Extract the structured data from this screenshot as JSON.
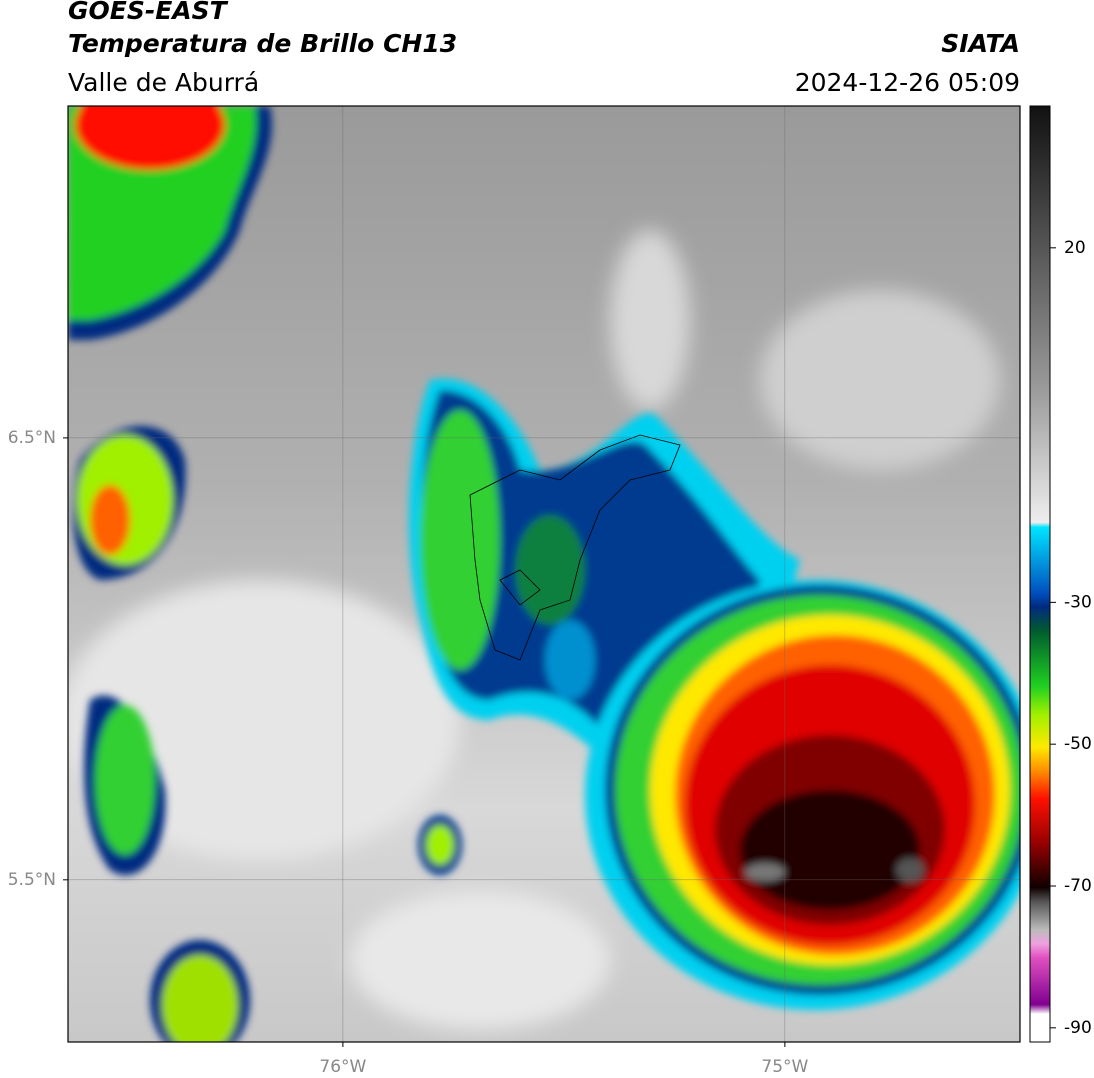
{
  "header": {
    "title": "GOES-EAST",
    "subtitle": "Temperatura de Brillo CH13",
    "region": "Valle de Aburrá",
    "source": "SIATA",
    "datetime": "2024-12-26 05:09"
  },
  "map": {
    "xlim": [
      -76.622,
      -74.468
    ],
    "ylim": [
      5.133,
      7.251
    ],
    "xticks": [
      {
        "value": -76,
        "label": "76°W"
      },
      {
        "value": -75,
        "label": "75°W"
      }
    ],
    "yticks": [
      {
        "value": 6.5,
        "label": "6.5°N"
      },
      {
        "value": 5.5,
        "label": "5.5°N"
      }
    ],
    "grid": true
  },
  "colorbar": {
    "lim": [
      -92,
      40
    ],
    "ticks": [
      20,
      -30,
      -50,
      -70,
      -90
    ]
  }
}
